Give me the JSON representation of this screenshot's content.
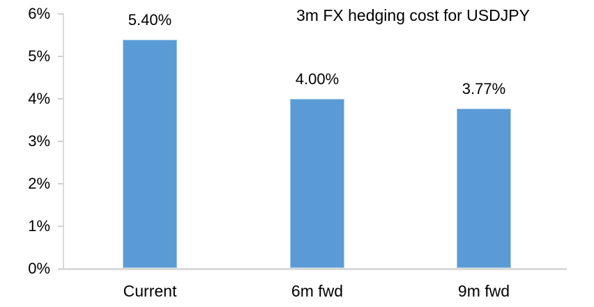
{
  "chart_data": {
    "type": "bar",
    "title": "3m FX hedging cost for USDJPY",
    "categories": [
      "Current",
      "6m fwd",
      "9m fwd"
    ],
    "values": [
      5.4,
      4.0,
      3.77
    ],
    "data_labels": [
      "5.40%",
      "4.00%",
      "3.77%"
    ],
    "ytick_labels": [
      "0%",
      "1%",
      "2%",
      "3%",
      "4%",
      "5%",
      "6%"
    ],
    "ylim": [
      0,
      6
    ],
    "xlabel": "",
    "ylabel": "",
    "grid": false,
    "legend": "none",
    "colors": {
      "bar_fill": "#5B9BD5",
      "bar_edge": "#A9CBEA",
      "axis_line": "#D9D9D9",
      "tick_mark": "#D0D0D0",
      "text": "#000000"
    }
  }
}
